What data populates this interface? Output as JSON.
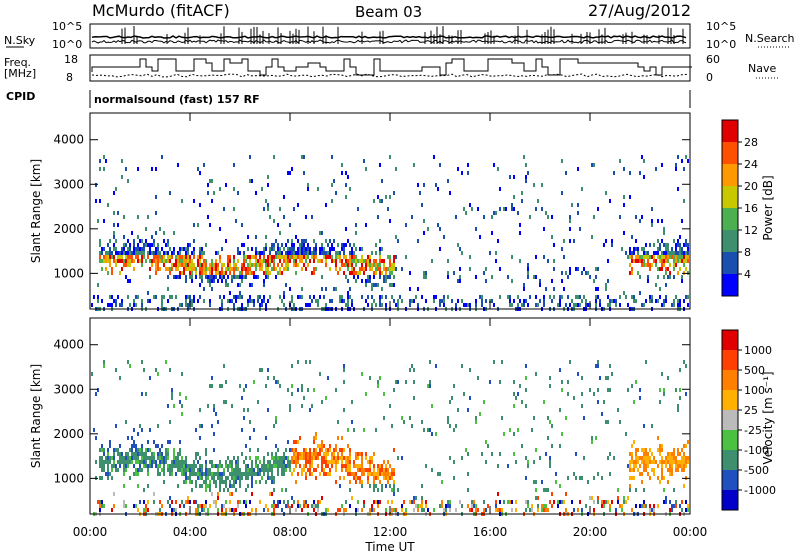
{
  "header": {
    "station": "McMurdo (fitACF)",
    "beam": "Beam 03",
    "date": "27/Aug/2012"
  },
  "top_panels": {
    "nsky_label": "N.Sky",
    "nsky_ticks": [
      "10^5",
      "10^0"
    ],
    "nsearch_label": "N.Search",
    "nsearch_ticks": [
      "10^5",
      "10^0"
    ],
    "freq_label_1": "Freq.",
    "freq_label_2": "[MHz]",
    "freq_ticks": [
      "18",
      "8"
    ],
    "nave_label": "Nave",
    "nave_ticks": [
      "60",
      "0"
    ],
    "cpid_label": "CPID",
    "cpid_text": "normalsound (fast) 157 RF"
  },
  "colors": {
    "power_scale": [
      "#0000ff",
      "#1a4fb0",
      "#3d8f6e",
      "#4caf50",
      "#c8c800",
      "#ff9900",
      "#ff5000",
      "#e00000"
    ],
    "velocity_scale": [
      "#0000c8",
      "#2050c0",
      "#3d8f6e",
      "#4cc040",
      "#bbbbbb",
      "#ffb000",
      "#ff8000",
      "#ff4000",
      "#e00000"
    ]
  },
  "chart_data": [
    {
      "type": "heatmap",
      "panel": "power",
      "ylabel": "Slant Range [km]",
      "xlabel": "",
      "x_ticks": [
        "00:00",
        "04:00",
        "08:00",
        "12:00",
        "16:00",
        "20:00",
        "00:00"
      ],
      "y_ticks": [
        "1000",
        "2000",
        "3000",
        "4000"
      ],
      "ylim": [
        200,
        4600
      ],
      "xlim_hours": [
        0,
        24
      ],
      "colorbar_label": "Power [dB]",
      "colorbar_ticks": [
        "28",
        "24",
        "20",
        "16",
        "12",
        "8",
        "4"
      ],
      "colorbar_range": [
        0,
        32
      ]
    },
    {
      "type": "heatmap",
      "panel": "velocity",
      "ylabel": "Slant Range [km]",
      "xlabel": "Time UT",
      "x_ticks": [
        "00:00",
        "04:00",
        "08:00",
        "12:00",
        "16:00",
        "20:00",
        "00:00"
      ],
      "y_ticks": [
        "1000",
        "2000",
        "3000",
        "4000"
      ],
      "ylim": [
        200,
        4600
      ],
      "xlim_hours": [
        0,
        24
      ],
      "colorbar_label": "Velocity [m s⁻¹]",
      "colorbar_ticks": [
        "1000",
        "500",
        "100",
        "25",
        "-25",
        "-100",
        "-500",
        "-1000"
      ]
    }
  ]
}
